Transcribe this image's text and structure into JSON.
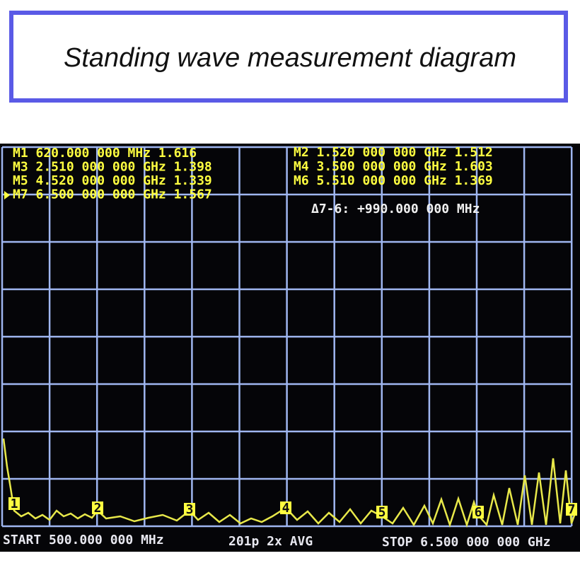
{
  "title": "Standing wave measurement diagram",
  "markers_left": [
    "M1 620.000 000 MHz   1.616",
    "M3 2.510 000 000 GHz 1.398",
    "M5 4.520 000 000 GHz 1.339",
    "M7 6.500 000 000 GHz 1.567"
  ],
  "markers_right": [
    "M2 1.520 000 000 GHz 1.512",
    "M4 3.500 000 000 GHz 1.603",
    "M6 5.510 000 000 GHz 1.369"
  ],
  "delta": "Δ7-6: +990.000 000 MHz",
  "trace_markers": [
    "1",
    "2",
    "3",
    "4",
    "5",
    "6",
    "7"
  ],
  "footer": {
    "start": "START  500.000 000 MHz",
    "points": "201p  2x AVG",
    "stop": "STOP 6.500 000 000 GHz"
  }
}
